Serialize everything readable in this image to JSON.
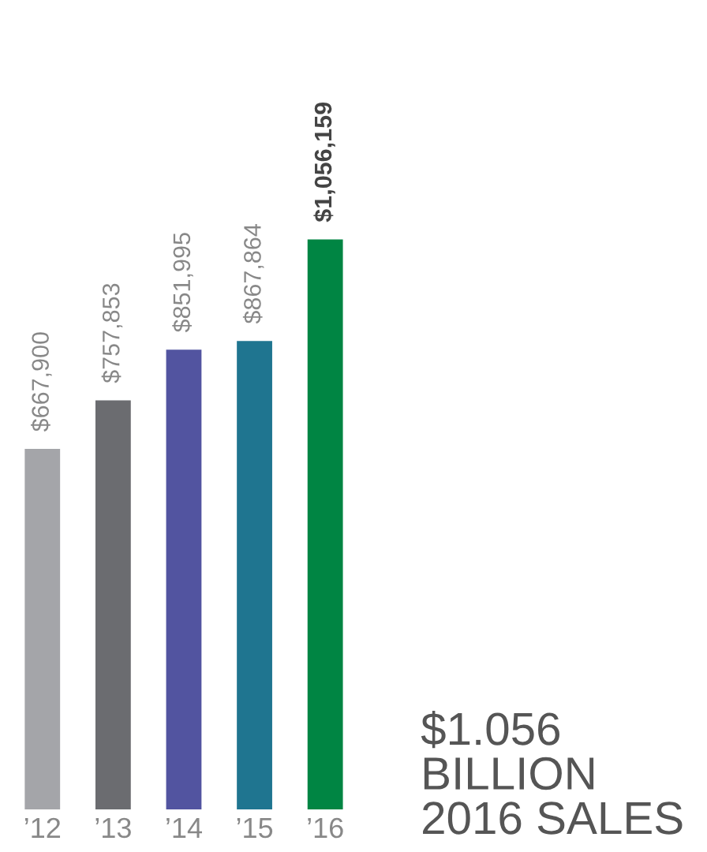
{
  "chart_data": {
    "type": "bar",
    "categories": [
      "’12",
      "’13",
      "’14",
      "’15",
      "’16"
    ],
    "values": [
      667900,
      757853,
      851995,
      867864,
      1056159
    ],
    "value_labels": [
      "$667,900",
      "$757,853",
      "$851,995",
      "$867,864",
      "$1,056,159"
    ],
    "colors": [
      "#a4a5a9",
      "#6b6c70",
      "#5254a0",
      "#1f7590",
      "#008543"
    ],
    "tick_labels": "x",
    "grid": false,
    "annotations": [
      "$1.056\nBILLION\n2016 SALES"
    ]
  }
}
